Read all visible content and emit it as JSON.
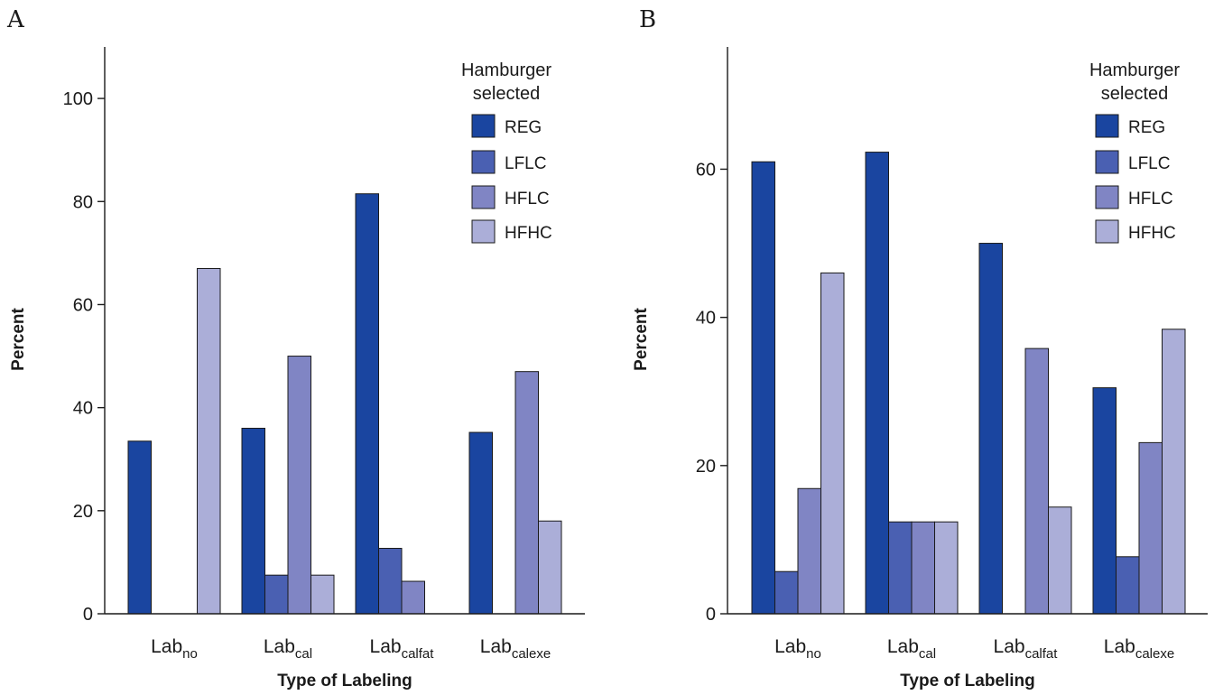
{
  "chart_data": [
    {
      "type": "bar",
      "panel": "A",
      "categories": [
        {
          "base": "Lab",
          "sub": "no"
        },
        {
          "base": "Lab",
          "sub": "cal"
        },
        {
          "base": "Lab",
          "sub": "calfat"
        },
        {
          "base": "Lab",
          "sub": "calexe"
        }
      ],
      "series": [
        {
          "name": "REG",
          "color": "#1a45a0",
          "values": [
            33.5,
            36,
            81.5,
            35.2
          ]
        },
        {
          "name": "LFLC",
          "color": "#4a60b2",
          "values": [
            0,
            7.5,
            12.7,
            0
          ]
        },
        {
          "name": "HFLC",
          "color": "#8085c4",
          "values": [
            0,
            50,
            6.3,
            47
          ]
        },
        {
          "name": "HFHC",
          "color": "#abaed8",
          "values": [
            67,
            7.5,
            0,
            18
          ]
        }
      ],
      "xlabel": "Type of Labeling",
      "ylabel": "Percent",
      "ylim": [
        0,
        110
      ],
      "yticks": [
        0,
        20,
        40,
        60,
        80,
        100
      ],
      "legend_title": [
        "Hamburger",
        "selected"
      ],
      "legend_position": "top-right",
      "grid": false
    },
    {
      "type": "bar",
      "panel": "B",
      "categories": [
        {
          "base": "Lab",
          "sub": "no"
        },
        {
          "base": "Lab",
          "sub": "cal"
        },
        {
          "base": "Lab",
          "sub": "calfat"
        },
        {
          "base": "Lab",
          "sub": "calexe"
        }
      ],
      "series": [
        {
          "name": "REG",
          "color": "#1a45a0",
          "values": [
            61,
            62.3,
            50,
            30.5
          ]
        },
        {
          "name": "LFLC",
          "color": "#4a60b2",
          "values": [
            5.7,
            12.4,
            0,
            7.7
          ]
        },
        {
          "name": "HFLC",
          "color": "#8085c4",
          "values": [
            16.9,
            12.4,
            35.8,
            23.1
          ]
        },
        {
          "name": "HFHC",
          "color": "#abaed8",
          "values": [
            46,
            12.4,
            14.4,
            38.4
          ]
        }
      ],
      "xlabel": "Type of Labeling",
      "ylabel": "Percent",
      "ylim": [
        0,
        76.5
      ],
      "yticks": [
        0,
        20,
        40,
        60
      ],
      "legend_title": [
        "Hamburger",
        "selected"
      ],
      "legend_position": "top-right",
      "grid": false
    }
  ]
}
